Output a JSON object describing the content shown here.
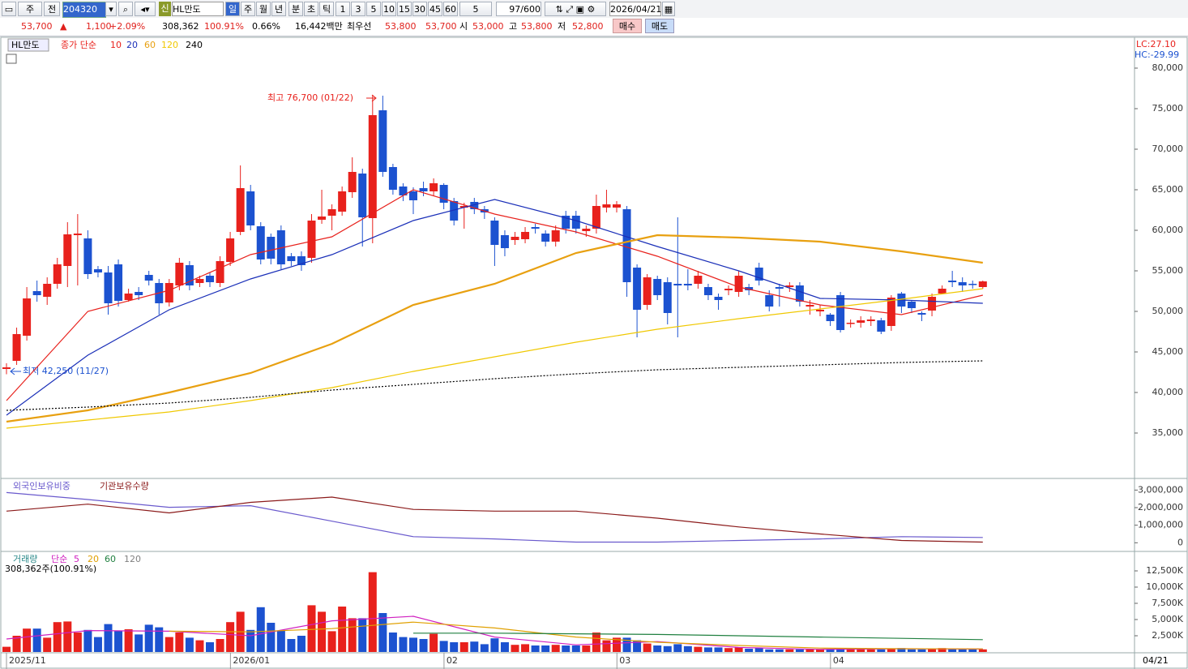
{
  "toolbar": {
    "period_unit": "주",
    "prev": "전",
    "code": "204320",
    "new_badge": "신",
    "name": "HL만도",
    "periods": [
      "일",
      "주",
      "월",
      "년",
      "분",
      "초",
      "틱"
    ],
    "minutes": [
      "1",
      "3",
      "5",
      "10",
      "15",
      "30",
      "45",
      "60",
      "5"
    ],
    "count": "97/600",
    "date": "2026/04/21"
  },
  "quote": {
    "price": "53,700",
    "arrow": "▲",
    "change": "1,100",
    "change_pct": "+2.09%",
    "volume": "308,362",
    "volume_ratio": "100.91%",
    "turnover": "0.66%",
    "amount": "16,442백만",
    "best_label": "최우선",
    "best_ask": "53,800",
    "best_bid": "53,700",
    "open_label": "시",
    "open": "53,000",
    "high_label": "고",
    "high": "53,800",
    "low_label": "저",
    "low": "52,800",
    "buy": "매수",
    "sell": "매도"
  },
  "chart_data": [
    {
      "type": "candlestick",
      "label": "HL만도",
      "legend_prefix": "종가 단순",
      "lc_label": "LC:27.10",
      "hc_label": "HC:-29.99",
      "annotations": [
        "최고 76,700 (01/22)",
        "최저 42,250 (11/27)"
      ],
      "up_color": "#e8211c",
      "down_color": "#1c52d0",
      "open": [
        42900,
        43900,
        47000,
        52500,
        51800,
        53400,
        55600,
        59400,
        59000,
        55200,
        54800,
        55800,
        51400,
        52400,
        54500,
        53500,
        51100,
        53200,
        55700,
        53500,
        54400,
        53500,
        56100,
        59800,
        64800,
        60500,
        59200,
        60000,
        56800,
        56800,
        56600,
        61300,
        61800,
        62300,
        64700,
        67000,
        61500,
        74800,
        67800,
        65400,
        64800,
        65200,
        64800,
        65600,
        63600,
        62800,
        63500,
        62600,
        61200,
        59400,
        58800,
        58900,
        60400,
        59600,
        58600,
        61800,
        61800,
        59900,
        60200,
        62800,
        62800,
        62600,
        55400,
        50800,
        54000,
        53600,
        53400,
        53400,
        53400,
        53000,
        51800,
        52600,
        52400,
        53000,
        55400,
        52000,
        53000,
        53000,
        53200,
        50600,
        50000,
        49600,
        52000,
        48500,
        48600,
        48800,
        48900,
        48200,
        52200,
        51200,
        49800,
        50100,
        52200,
        53800,
        53600,
        53400,
        53000
      ],
      "high": [
        43600,
        48000,
        53000,
        53800,
        54200,
        56600,
        61000,
        62000,
        60000,
        55600,
        55600,
        56400,
        52800,
        53000,
        55000,
        54000,
        54000,
        56600,
        56200,
        54400,
        54800,
        56800,
        59800,
        68000,
        65600,
        61000,
        59600,
        60600,
        57200,
        57400,
        62000,
        65000,
        63200,
        65400,
        69000,
        67600,
        76700,
        76600,
        68200,
        65800,
        65300,
        66000,
        66400,
        65800,
        64000,
        63400,
        64000,
        63000,
        61600,
        60000,
        59800,
        60400,
        60800,
        60000,
        60600,
        62400,
        62400,
        60600,
        64400,
        65000,
        63600,
        63000,
        55800,
        54600,
        54400,
        54200,
        61600,
        55200,
        55000,
        53400,
        52200,
        53200,
        55000,
        53400,
        56000,
        52600,
        53400,
        53600,
        53600,
        51400,
        50800,
        49800,
        52400,
        49000,
        49400,
        49400,
        49200,
        52000,
        52400,
        51400,
        50000,
        52200,
        53200,
        55000,
        54200,
        53800,
        53800
      ],
      "low": [
        42250,
        43400,
        46400,
        51200,
        50800,
        52800,
        53000,
        53200,
        54000,
        54200,
        49600,
        50600,
        51200,
        51400,
        53200,
        49600,
        50600,
        52600,
        52600,
        53000,
        53000,
        53000,
        55600,
        59400,
        60000,
        55800,
        55800,
        55200,
        55600,
        55000,
        56000,
        60800,
        60000,
        61800,
        64000,
        58000,
        58400,
        66600,
        64400,
        63600,
        62000,
        64200,
        64200,
        62600,
        60600,
        60200,
        62000,
        61400,
        55600,
        56800,
        58200,
        58400,
        59600,
        58000,
        58000,
        59600,
        59600,
        59200,
        59600,
        62200,
        62200,
        51800,
        46800,
        50200,
        51400,
        48400,
        46800,
        52600,
        52800,
        51400,
        50200,
        52000,
        51800,
        52000,
        53200,
        50000,
        50600,
        52400,
        50600,
        49600,
        49400,
        48200,
        47400,
        48000,
        48000,
        48200,
        47200,
        47600,
        49800,
        49800,
        48800,
        49400,
        52200,
        53000,
        52400,
        52800,
        52800
      ],
      "close": [
        43100,
        47200,
        51600,
        52000,
        53400,
        55800,
        59500,
        59600,
        54600,
        54800,
        51000,
        51300,
        52200,
        52000,
        53800,
        51000,
        53500,
        56000,
        53200,
        54000,
        53600,
        56200,
        59000,
        65200,
        60600,
        56400,
        56500,
        55800,
        56200,
        55700,
        61200,
        61700,
        62600,
        64800,
        67200,
        61600,
        74200,
        67200,
        65000,
        64300,
        63700,
        64800,
        65800,
        63400,
        61200,
        63000,
        62600,
        62200,
        58200,
        57800,
        59200,
        59800,
        60200,
        58600,
        60000,
        60200,
        60200,
        60200,
        63000,
        63200,
        63200,
        53600,
        50200,
        54200,
        52000,
        49800,
        53200,
        53200,
        54400,
        52000,
        51400,
        52800,
        54400,
        52600,
        53800,
        50600,
        52800,
        53200,
        51200,
        50800,
        50200,
        48800,
        47700,
        48600,
        48900,
        49000,
        47500,
        51700,
        50600,
        50400,
        49600,
        51800,
        52800,
        53600,
        53200,
        53300,
        53700
      ],
      "series": [
        {
          "name": "10",
          "color": "#e8211c",
          "values": [
            39000,
            50000,
            52600,
            57000,
            59200,
            65000,
            62000,
            59800,
            56800,
            53000,
            50800,
            49600,
            52000
          ]
        },
        {
          "name": "20",
          "color": "#1a2fb8",
          "values": [
            37200,
            44600,
            50200,
            54000,
            57000,
            61200,
            63800,
            61200,
            58000,
            55000,
            51600,
            51400,
            51000
          ]
        },
        {
          "name": "60",
          "color": "#e8a010",
          "values": [
            36400,
            37800,
            40000,
            42400,
            46000,
            50800,
            53400,
            57200,
            59400,
            59100,
            58600,
            57400,
            56000
          ]
        },
        {
          "name": "120",
          "color": "#f0c800",
          "values": [
            35600,
            36600,
            37600,
            39000,
            40600,
            42600,
            44400,
            46200,
            47800,
            49100,
            50300,
            51500,
            52800
          ]
        },
        {
          "name": "240",
          "color": "#000000",
          "style": "dotted",
          "values": [
            37800,
            38200,
            38700,
            39400,
            40300,
            41000,
            41700,
            42300,
            42800,
            43100,
            43400,
            43700,
            43900
          ]
        }
      ],
      "ylim": [
        29400,
        83700
      ],
      "yticks": [
        {
          "value": 35000,
          "label": "35,000"
        },
        {
          "value": 40000,
          "label": "40,000"
        },
        {
          "value": 45000,
          "label": "45,000"
        },
        {
          "value": 50000,
          "label": "50,000"
        },
        {
          "value": 55000,
          "label": "55,000"
        },
        {
          "value": 60000,
          "label": "60,000"
        },
        {
          "value": 65000,
          "label": "65,000"
        },
        {
          "value": 70000,
          "label": "70,000"
        },
        {
          "value": 75000,
          "label": "75,000"
        },
        {
          "value": 80000,
          "label": "80,000"
        }
      ],
      "xticks": [
        {
          "value": 0,
          "label": "2025/11"
        },
        {
          "value": 22.5,
          "label": "2026/01"
        },
        {
          "value": 43.5,
          "label": "02"
        },
        {
          "value": 60.5,
          "label": "03"
        },
        {
          "value": 81.5,
          "label": "04"
        }
      ],
      "last_date": "04/21"
    },
    {
      "type": "line",
      "series": [
        {
          "name": "외국인보유비중",
          "color": "#6a5acd",
          "values": [
            2860000,
            2460000,
            2020000,
            2110000,
            1230000,
            350000,
            220000,
            40000,
            40000,
            130000,
            220000,
            350000,
            300000
          ]
        },
        {
          "name": "기관보유수량",
          "color": "#8b1a1a",
          "values": [
            1800000,
            2200000,
            1700000,
            2300000,
            2600000,
            1900000,
            1800000,
            1800000,
            1400000,
            900000,
            500000,
            130000,
            40000
          ]
        }
      ],
      "ylim": [
        -400000,
        3570000
      ],
      "yticks": [
        0,
        {
          "value": 1000000,
          "label": "1,000,000"
        },
        {
          "value": 2000000,
          "label": "2,000,000"
        },
        {
          "value": 3000000,
          "label": "3,000,000"
        }
      ]
    },
    {
      "type": "bar",
      "label": "거래량",
      "legend_prefix": "단순",
      "current": "308,362주(100.91%)",
      "values": [
        800,
        2500,
        3600,
        3600,
        2200,
        4600,
        4700,
        3000,
        3400,
        2300,
        4300,
        3300,
        3500,
        2700,
        4200,
        3800,
        2300,
        3000,
        2200,
        1800,
        1500,
        2000,
        4600,
        6200,
        3400,
        6900,
        4500,
        3300,
        2000,
        2500,
        7200,
        6200,
        3200,
        7000,
        5200,
        5200,
        12300,
        6000,
        3000,
        2300,
        2200,
        2000,
        2800,
        1700,
        1500,
        1500,
        1600,
        1200,
        2100,
        1500,
        1100,
        1200,
        1000,
        1000,
        1100,
        1000,
        1000,
        1000,
        3000,
        1800,
        2200,
        2200,
        1800,
        1300,
        1000,
        900,
        1200,
        900,
        800,
        700,
        700,
        600,
        700,
        500,
        600,
        400,
        400,
        400,
        400,
        400,
        400,
        400,
        500,
        400,
        400,
        400,
        400,
        500,
        600,
        400,
        400,
        500,
        600,
        500,
        400,
        400,
        400
      ],
      "series": [
        {
          "name": "5",
          "color": "#d020c0",
          "values": [
            2000,
            3300,
            3200,
            2500,
            4800,
            5500,
            2300,
            1100,
            1600,
            700,
            400,
            500,
            450
          ]
        },
        {
          "name": "20",
          "color": "#e0a000",
          "values": [
            null,
            null,
            3200,
            3100,
            3600,
            4600,
            3700,
            2300,
            1500,
            1000,
            600,
            500,
            480
          ]
        },
        {
          "name": "60",
          "color": "#208040",
          "values": [
            null,
            null,
            null,
            null,
            null,
            2900,
            2900,
            2800,
            2700,
            2500,
            2300,
            2100,
            1900
          ]
        },
        {
          "name": "120",
          "color": "#808080"
        }
      ],
      "ylim": [
        0,
        14750
      ],
      "yticks": [
        {
          "value": 2500,
          "label": "2,500K"
        },
        {
          "value": 5000,
          "label": "5,000K"
        },
        {
          "value": 7500,
          "label": "7,500K"
        },
        {
          "value": 10000,
          "label": "10,000K"
        },
        {
          "value": 12500,
          "label": "12,500K"
        }
      ]
    }
  ]
}
